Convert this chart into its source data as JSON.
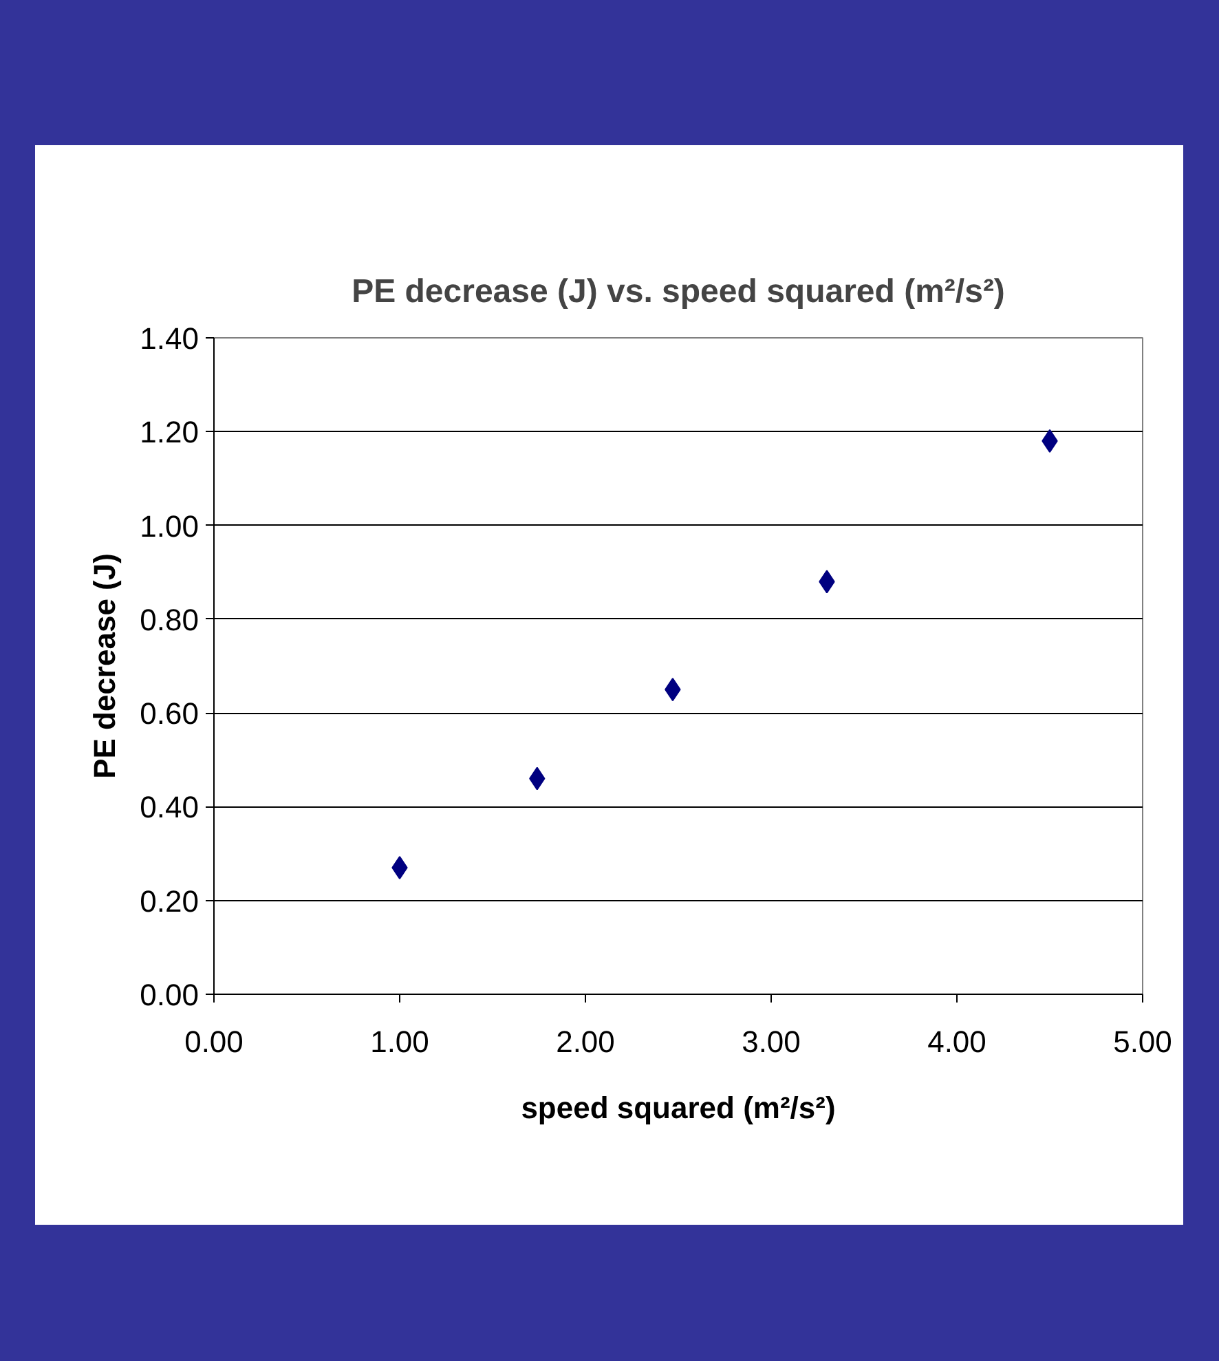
{
  "chart_data": {
    "type": "scatter",
    "title": "PE decrease (J) vs. speed squared (m²/s²)",
    "xlabel": "speed squared (m²/s²)",
    "ylabel": "PE decrease (J)",
    "x": [
      1.0,
      1.74,
      2.47,
      3.3,
      4.5
    ],
    "series": [
      {
        "color": "#000080",
        "values": [
          0.27,
          0.46,
          0.65,
          0.88,
          1.18
        ]
      }
    ],
    "marker": "diamond",
    "grid": "y",
    "xlim": [
      0,
      5
    ],
    "xticks": [
      {
        "value": 0,
        "label": "0.00"
      },
      {
        "value": 1,
        "label": "1.00"
      },
      {
        "value": 2,
        "label": "2.00"
      },
      {
        "value": 3,
        "label": "3.00"
      },
      {
        "value": 4,
        "label": "4.00"
      },
      {
        "value": 5,
        "label": "5.00"
      }
    ],
    "ylim": [
      0,
      1.4
    ],
    "yticks": [
      {
        "value": 0,
        "label": "0.00"
      },
      {
        "value": 0.2,
        "label": "0.20"
      },
      {
        "value": 0.4,
        "label": "0.40"
      },
      {
        "value": 0.6,
        "label": "0.60"
      },
      {
        "value": 0.8,
        "label": "0.80"
      },
      {
        "value": 1.0,
        "label": "1.00"
      },
      {
        "value": 1.2,
        "label": "1.20"
      },
      {
        "value": 1.4,
        "label": "1.40"
      }
    ]
  }
}
